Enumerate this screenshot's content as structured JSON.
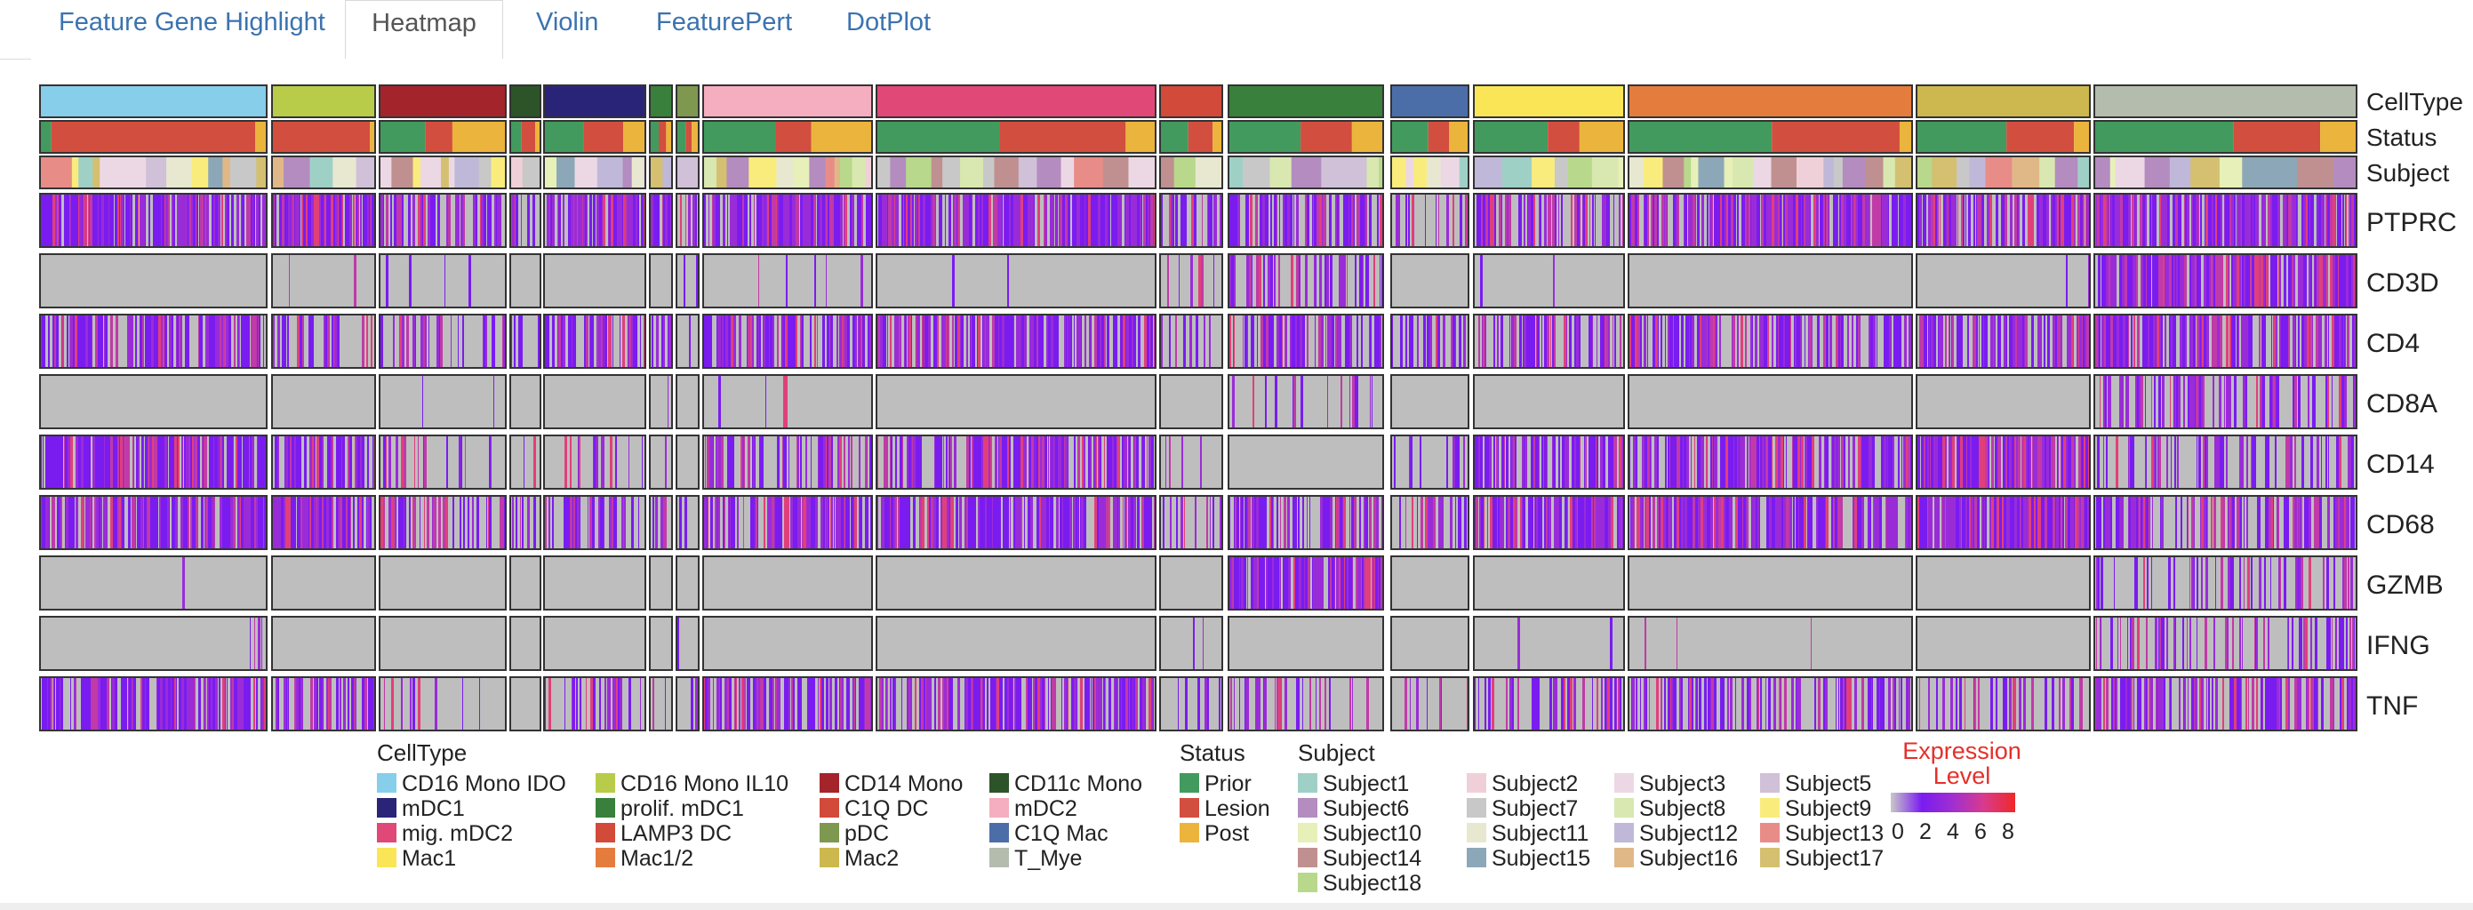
{
  "tabs": [
    {
      "label": "Feature Gene Highlight",
      "active": false
    },
    {
      "label": "Heatmap",
      "active": true
    },
    {
      "label": "Violin",
      "active": false
    },
    {
      "label": "FeaturePert",
      "active": false
    },
    {
      "label": "DotPlot",
      "active": false
    }
  ],
  "chart_data": {
    "type": "heatmap",
    "annotation_rows": [
      "CellType",
      "Status",
      "Subject"
    ],
    "genes": [
      "PTPRC",
      "CD3D",
      "CD4",
      "CD8A",
      "CD14",
      "CD68",
      "GZMB",
      "IFNG",
      "TNF"
    ],
    "cell_type_order": [
      "CD16 Mono IDO",
      "CD16 Mono IL10",
      "CD14 Mono",
      "CD11c Mono",
      "mDC1",
      "prolif. mDC1",
      "C1Q DC",
      "mDC2",
      "mig. mDC2",
      "LAMP3 DC",
      "C1Q Mac",
      "Mac1",
      "Mac1/2",
      "Mac2",
      "T_Mye"
    ],
    "expression_density": {
      "PTPRC": [
        0.85,
        0.85,
        0.6,
        0.5,
        0.75,
        0.6,
        0.5,
        0.8,
        0.85,
        0.7,
        0.4,
        0.5,
        0.8,
        0.75,
        0.85
      ],
      "CD3D": [
        0.01,
        0.01,
        0.05,
        0.0,
        0.0,
        0.05,
        0.2,
        0.02,
        0.02,
        0.5,
        0.0,
        0.02,
        0.0,
        0.01,
        0.85
      ],
      "CD4": [
        0.75,
        0.6,
        0.45,
        0.3,
        0.6,
        0.5,
        0.4,
        0.7,
        0.75,
        0.55,
        0.4,
        0.45,
        0.6,
        0.65,
        0.7
      ],
      "CD8A": [
        0.01,
        0.0,
        0.02,
        0.0,
        0.05,
        0.1,
        0.0,
        0.02,
        0.01,
        0.15,
        0.0,
        0.0,
        0.0,
        0.01,
        0.45
      ],
      "CD14": [
        0.8,
        0.75,
        0.25,
        0.1,
        0.2,
        0.1,
        0.2,
        0.5,
        0.65,
        0.0,
        0.2,
        0.7,
        0.75,
        0.85,
        0.45
      ],
      "CD68": [
        0.8,
        0.8,
        0.5,
        0.3,
        0.55,
        0.4,
        0.2,
        0.65,
        0.75,
        0.7,
        0.4,
        0.9,
        0.8,
        0.9,
        0.6
      ],
      "GZMB": [
        0.02,
        0.0,
        0.0,
        0.0,
        0.03,
        0.0,
        0.0,
        0.02,
        0.0,
        0.85,
        0.0,
        0.0,
        0.0,
        0.01,
        0.25
      ],
      "IFNG": [
        0.01,
        0.0,
        0.0,
        0.0,
        0.0,
        0.0,
        0.05,
        0.0,
        0.0,
        0.0,
        0.0,
        0.02,
        0.03,
        0.0,
        0.3
      ],
      "TNF": [
        0.7,
        0.6,
        0.15,
        0.1,
        0.4,
        0.2,
        0.3,
        0.6,
        0.65,
        0.25,
        0.1,
        0.4,
        0.55,
        0.3,
        0.6
      ]
    },
    "expression_colorbar": {
      "title_line1": "Expression",
      "title_line2": "Level",
      "ticks": [
        0,
        2,
        4,
        6,
        8
      ],
      "range": [
        0,
        8
      ],
      "colors": [
        "#c8c8c8",
        "#7a1cf0",
        "#a02fd0",
        "#d83b8c",
        "#f02828"
      ]
    }
  },
  "legend": {
    "celltype_title": "CellType",
    "celltypes": [
      {
        "label": "CD16 Mono IDO",
        "color": "#87ceeb"
      },
      {
        "label": "mDC1",
        "color": "#2a2478"
      },
      {
        "label": "mig. mDC2",
        "color": "#e04878"
      },
      {
        "label": "Mac1",
        "color": "#fae556"
      },
      {
        "label": "CD16 Mono IL10",
        "color": "#b8cc4a"
      },
      {
        "label": "prolif. mDC1",
        "color": "#38803c"
      },
      {
        "label": "LAMP3 DC",
        "color": "#d24a3a"
      },
      {
        "label": "Mac1/2",
        "color": "#e47c3e"
      },
      {
        "label": "CD14 Mono",
        "color": "#a4242c"
      },
      {
        "label": "C1Q DC",
        "color": "#d24a3a"
      },
      {
        "label": "pDC",
        "color": "#7e9850"
      },
      {
        "label": "Mac2",
        "color": "#ccb84e"
      },
      {
        "label": "CD11c Mono",
        "color": "#2c5428"
      },
      {
        "label": "mDC2",
        "color": "#f4aec0"
      },
      {
        "label": "C1Q Mac",
        "color": "#4c6ea8"
      },
      {
        "label": "T_Mye",
        "color": "#b4bcae"
      }
    ],
    "status_title": "Status",
    "statuses": [
      {
        "label": "Prior",
        "color": "#439a5e"
      },
      {
        "label": "Lesion",
        "color": "#d24e3e"
      },
      {
        "label": "Post",
        "color": "#ebb43c"
      }
    ],
    "subject_title": "Subject",
    "subjects": [
      {
        "label": "Subject1",
        "color": "#9fd0c6"
      },
      {
        "label": "Subject6",
        "color": "#b48cc0"
      },
      {
        "label": "Subject10",
        "color": "#e6f0b8"
      },
      {
        "label": "Subject14",
        "color": "#c09090"
      },
      {
        "label": "Subject18",
        "color": "#b8d88c"
      },
      {
        "label": "Subject2",
        "color": "#f0d0d8"
      },
      {
        "label": "Subject7",
        "color": "#c8c8c8"
      },
      {
        "label": "Subject11",
        "color": "#e8e8d0"
      },
      {
        "label": "Subject15",
        "color": "#8ca8b8"
      },
      {
        "label": "Subject3",
        "color": "#ecd8e4"
      },
      {
        "label": "Subject8",
        "color": "#d8e8b0"
      },
      {
        "label": "Subject12",
        "color": "#c0b8d8"
      },
      {
        "label": "Subject16",
        "color": "#e0b888"
      },
      {
        "label": "Subject5",
        "color": "#d0c0d8"
      },
      {
        "label": "Subject9",
        "color": "#faec7c"
      },
      {
        "label": "Subject13",
        "color": "#e88c88"
      },
      {
        "label": "Subject17",
        "color": "#d4c070"
      }
    ]
  },
  "colors": {
    "tab_link": "#3b73b0",
    "heatmap_empty": "#bebebe",
    "border": "#333333"
  }
}
